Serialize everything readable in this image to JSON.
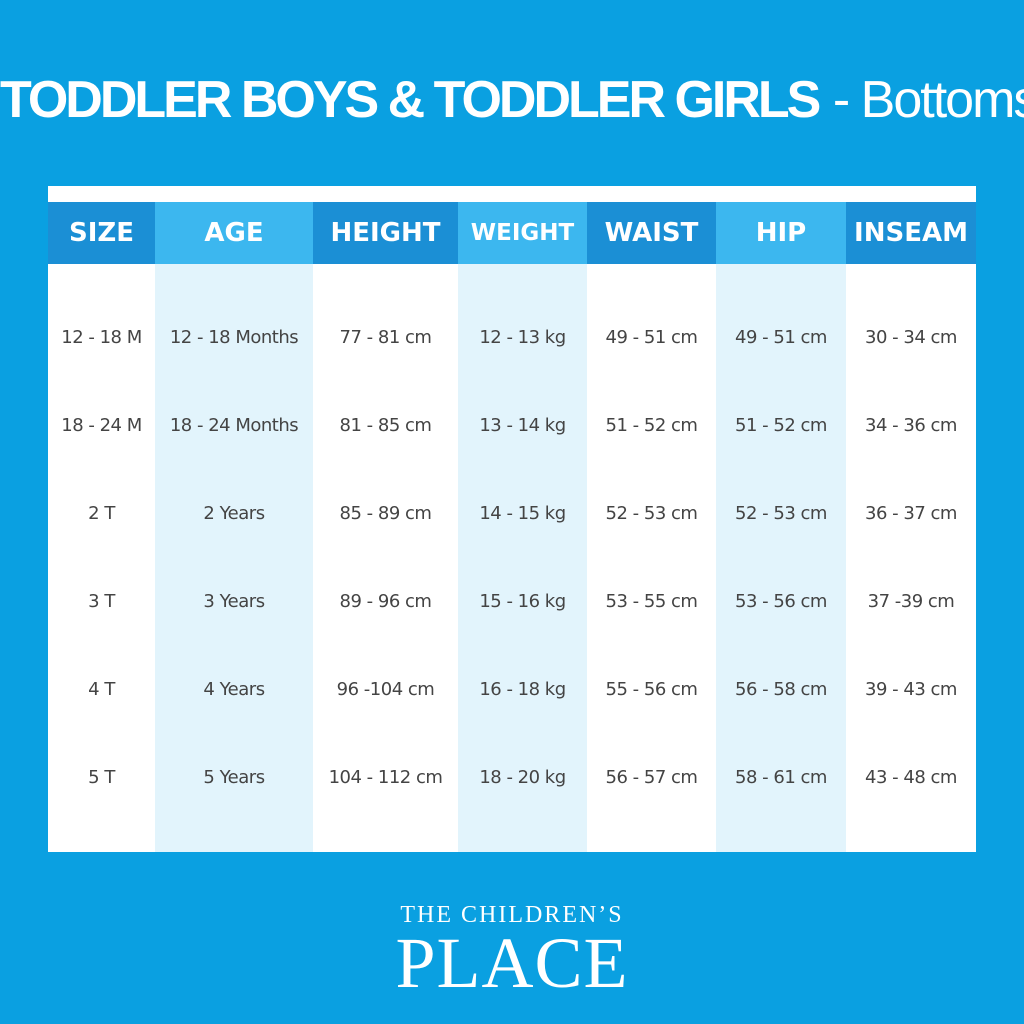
{
  "title": {
    "main": "TODDLER BOYS & TODDLER GIRLS",
    "sub": "- Bottoms"
  },
  "table": {
    "headers": [
      "SIZE",
      "AGE",
      "HEIGHT",
      "WEIGHT",
      "WAIST",
      "HIP",
      "INSEAM"
    ],
    "rows": [
      [
        "12 - 18 M",
        "12 - 18 Months",
        "77 - 81 cm",
        "12 - 13 kg",
        "49 - 51 cm",
        "49 - 51 cm",
        "30 - 34 cm"
      ],
      [
        "18 - 24 M",
        "18 - 24 Months",
        "81 - 85 cm",
        "13 - 14 kg",
        "51 - 52 cm",
        "51 - 52 cm",
        "34 - 36 cm"
      ],
      [
        "2 T",
        "2 Years",
        "85 - 89 cm",
        "14 - 15 kg",
        "52 - 53 cm",
        "52 - 53 cm",
        "36 - 37 cm"
      ],
      [
        "3 T",
        "3 Years",
        "89 - 96 cm",
        "15 - 16 kg",
        "53 - 55 cm",
        "53 - 56 cm",
        "37 -39 cm"
      ],
      [
        "4 T",
        "4 Years",
        "96 -104 cm",
        "16 - 18 kg",
        "55 - 56 cm",
        "56 - 58 cm",
        "39 - 43 cm"
      ],
      [
        "5 T",
        "5 Years",
        "104 - 112 cm",
        "18 - 20 kg",
        "56 - 57 cm",
        "58 - 61 cm",
        "43 - 48 cm"
      ]
    ]
  },
  "brand": {
    "line1": "THE CHILDREN’S",
    "line2": "PLACE"
  }
}
